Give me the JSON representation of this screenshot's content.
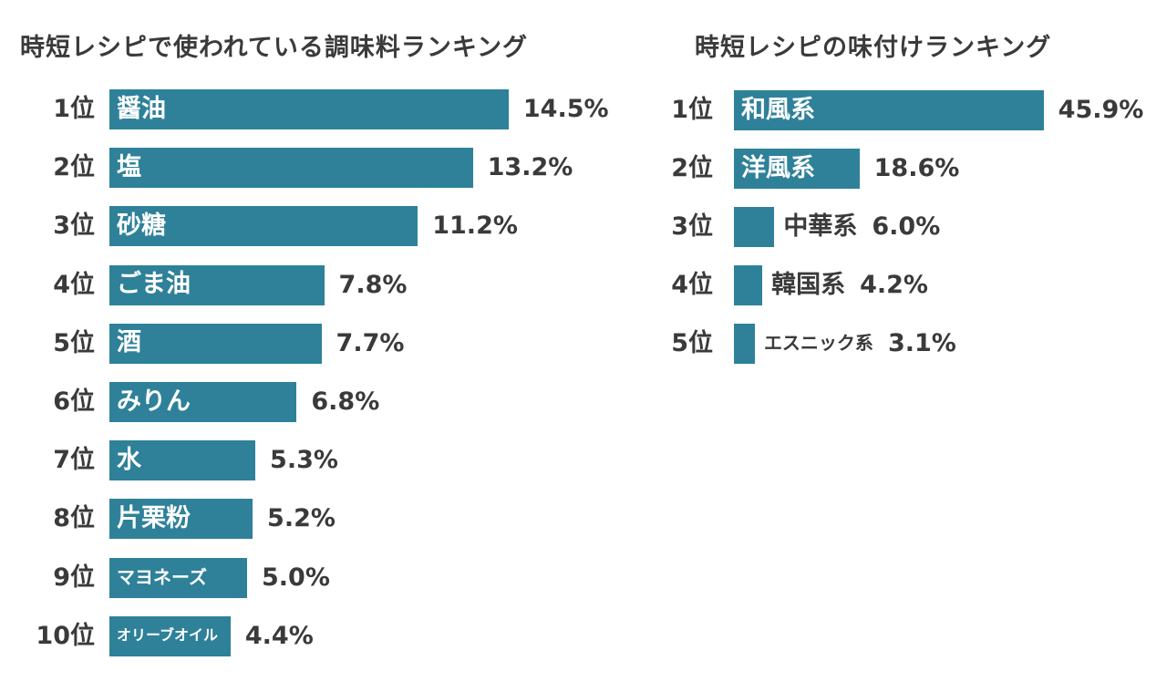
{
  "chart_data": [
    {
      "type": "bar",
      "orientation": "horizontal",
      "title": "時短レシピで使われている調味料ランキング",
      "ranks": [
        "1位",
        "2位",
        "3位",
        "4位",
        "5位",
        "6位",
        "7位",
        "8位",
        "9位",
        "10位"
      ],
      "categories": [
        "醤油",
        "塩",
        "砂糖",
        "ごま油",
        "酒",
        "みりん",
        "水",
        "片栗粉",
        "マヨネーズ",
        "オリーブオイル"
      ],
      "values": [
        14.5,
        13.2,
        11.2,
        7.8,
        7.7,
        6.8,
        5.3,
        5.2,
        5.0,
        4.4
      ],
      "value_labels": [
        "14.5%",
        "13.2%",
        "11.2%",
        "7.8%",
        "7.7%",
        "6.8%",
        "5.3%",
        "5.2%",
        "5.0%",
        "4.4%"
      ],
      "unit": "%",
      "color": "#2e8199"
    },
    {
      "type": "bar",
      "orientation": "horizontal",
      "title": "時短レシピの味付けランキング",
      "ranks": [
        "1位",
        "2位",
        "3位",
        "4位",
        "5位"
      ],
      "categories": [
        "和風系",
        "洋風系",
        "中華系",
        "韓国系",
        "エスニック系"
      ],
      "values": [
        45.9,
        18.6,
        6.0,
        4.2,
        3.1
      ],
      "value_labels": [
        "45.9%",
        "18.6%",
        "6.0%",
        "4.2%",
        "3.1%"
      ],
      "unit": "%",
      "color": "#2e8199"
    }
  ]
}
